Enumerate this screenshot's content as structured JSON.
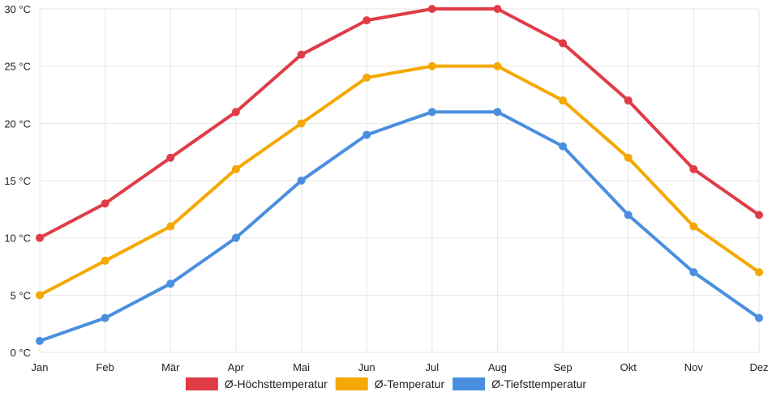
{
  "chart_data": {
    "type": "line",
    "title": "",
    "xlabel": "",
    "ylabel": "",
    "categories": [
      "Jan",
      "Feb",
      "Mär",
      "Apr",
      "Mai",
      "Jun",
      "Jul",
      "Aug",
      "Sep",
      "Okt",
      "Nov",
      "Dez"
    ],
    "ylim": [
      0,
      30
    ],
    "ytick_step": 5,
    "y_unit": "°C",
    "grid": true,
    "legend_position": "bottom",
    "series": [
      {
        "name": "Ø-Höchsttemperatur",
        "color": "#e03c47",
        "values": [
          10,
          13,
          17,
          21,
          26,
          29,
          30,
          30,
          27,
          22,
          16,
          12
        ]
      },
      {
        "name": "Ø-Temperatur",
        "color": "#f5a800",
        "values": [
          5,
          8,
          11,
          16,
          20,
          24,
          25,
          25,
          22,
          17,
          11,
          7
        ]
      },
      {
        "name": "Ø-Tiefsttemperatur",
        "color": "#4a8fdf",
        "values": [
          1,
          3,
          6,
          10,
          15,
          19,
          21,
          21,
          18,
          12,
          7,
          3
        ]
      }
    ]
  }
}
